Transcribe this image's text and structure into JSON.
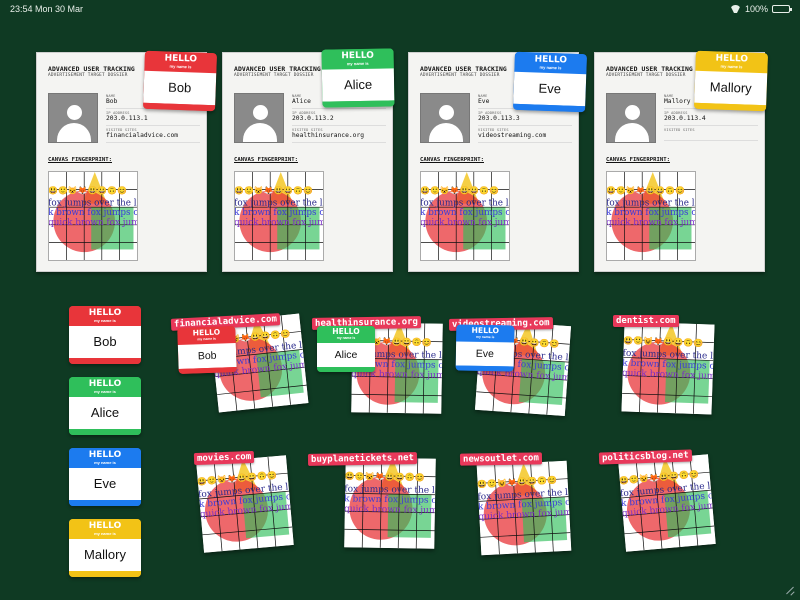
{
  "status_bar": {
    "time": "23:54  Mon 30 Mar",
    "battery": "100%",
    "battery_level": 1.0
  },
  "dossier_labels": {
    "title": "ADVANCED USER TRACKING",
    "subtitle": "ADVERTISEMENT TARGET DOSSIER",
    "name_label": "NAME",
    "ip_label": "IP ADDRESS",
    "sites_label": "VISITED SITES",
    "canvas_label": "CANVAS FINGERPRINT:"
  },
  "hello_tag": {
    "hello": "HELLO",
    "my_name_is": "my name is"
  },
  "fingerprint_text": {
    "line1": "fox jumps over the lazy dog",
    "line2": "k brown fox jumps over the la",
    "line3": "quick brown fox jumps over",
    "emoji": "😃🙂😺🦊😃😀🙃😊"
  },
  "dossiers": [
    {
      "name": "Bob",
      "ip": "203.0.113.1",
      "visited": "financialadvice.com",
      "color": "#e8353a"
    },
    {
      "name": "Alice",
      "ip": "203.0.113.2",
      "visited": "healthinsurance.org",
      "color": "#2fbf5b"
    },
    {
      "name": "Eve",
      "ip": "203.0.113.3",
      "visited": "videostreaming.com",
      "color": "#1c7bef"
    },
    {
      "name": "Mallory",
      "ip": "203.0.113.4",
      "visited": "",
      "color": "#f2c316"
    }
  ],
  "tray_tags": [
    {
      "name": "Bob",
      "color": "#e8353a"
    },
    {
      "name": "Alice",
      "color": "#2fbf5b"
    },
    {
      "name": "Eve",
      "color": "#1c7bef"
    },
    {
      "name": "Mallory",
      "color": "#f2c316"
    }
  ],
  "site_cards": [
    {
      "domain": "financialadvice.com",
      "tag": "Bob",
      "tag_color": "#e8353a"
    },
    {
      "domain": "healthinsurance.org",
      "tag": "Alice",
      "tag_color": "#2fbf5b"
    },
    {
      "domain": "videostreaming.com",
      "tag": "Eve",
      "tag_color": "#1c7bef"
    },
    {
      "domain": "dentist.com",
      "tag": "",
      "tag_color": ""
    },
    {
      "domain": "movies.com",
      "tag": "",
      "tag_color": ""
    },
    {
      "domain": "buyplanetickets.net",
      "tag": "",
      "tag_color": ""
    },
    {
      "domain": "newsoutlet.com",
      "tag": "",
      "tag_color": ""
    },
    {
      "domain": "politicsblog.net",
      "tag": "",
      "tag_color": ""
    }
  ]
}
